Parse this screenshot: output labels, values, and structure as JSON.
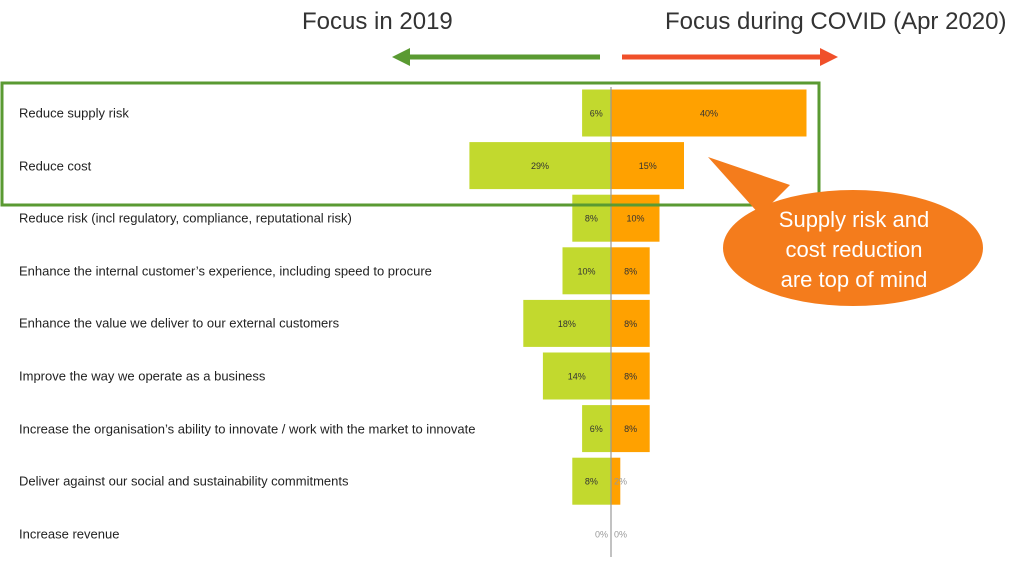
{
  "chart_data": {
    "type": "bar",
    "orientation": "horizontal-diverging",
    "categories": [
      "Reduce supply risk",
      "Reduce cost",
      "Reduce risk (incl regulatory, compliance, reputational risk)",
      "Enhance the internal customer’s experience, including speed to procure",
      "Enhance the value we deliver to our external customers",
      "Improve the way we operate as a business",
      "Increase the organisation’s ability to innovate / work with the market to innovate",
      "Deliver against our social and sustainability commitments",
      "Increase revenue"
    ],
    "series": [
      {
        "name": "Focus in 2019",
        "direction": "left",
        "color": "#c2d92e",
        "values": [
          6,
          29,
          8,
          10,
          18,
          14,
          6,
          8,
          0
        ]
      },
      {
        "name": "Focus during COVID (Apr 2020)",
        "direction": "right",
        "color": "#ffa100",
        "values": [
          40,
          15,
          10,
          8,
          8,
          8,
          8,
          2,
          0
        ]
      }
    ],
    "unit": "%",
    "header_arrow_colors": {
      "left": "#5a9a32",
      "right": "#f0502a"
    },
    "highlight_box_color": "#5a9a32",
    "highlighted_categories": [
      "Reduce supply risk",
      "Reduce cost"
    ],
    "callout": {
      "text_lines": [
        "Supply risk and",
        "cost reduction",
        "are top of mind"
      ],
      "color": "#f47c1c"
    }
  }
}
